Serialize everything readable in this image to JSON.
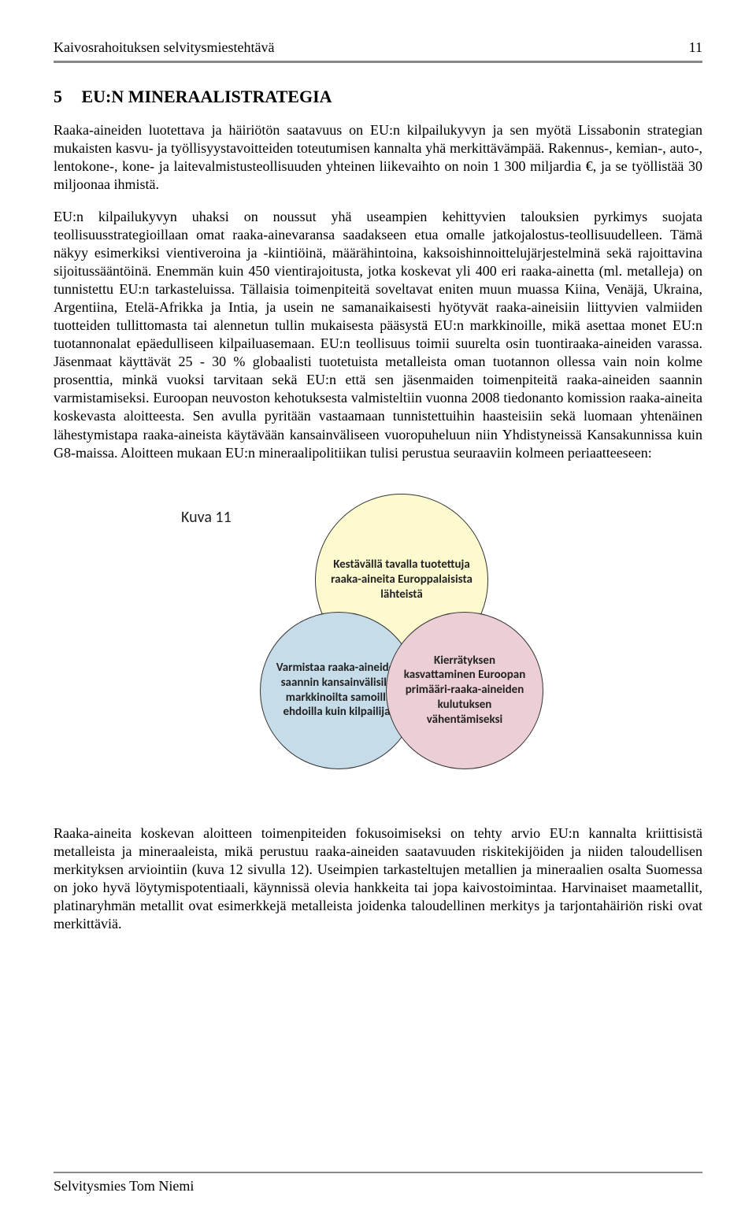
{
  "header": {
    "title": "Kaivosrahoituksen selvitysmiestehtävä",
    "page_number": "11"
  },
  "section": {
    "number": "5",
    "title": "EU:N MINERAALISTRATEGIA"
  },
  "paragraphs": {
    "p1": "Raaka-aineiden luotettava ja häiriötön saatavuus on EU:n kilpailukyvyn ja sen myötä Lissabonin strategian mukaisten kasvu- ja työllisyystavoitteiden toteutumisen kannalta yhä merkittävämpää. Rakennus-, kemian-, auto-, lentokone-, kone- ja laitevalmistusteollisuuden yhteinen liikevaihto on noin 1 300 miljardia €, ja se työllistää 30 miljoonaa ihmistä.",
    "p2": "EU:n kilpailukyvyn uhaksi on noussut yhä useampien kehittyvien talouksien pyrkimys suojata teollisuusstrategioillaan omat raaka-ainevaransa saadakseen etua omalle jatkojalostus-teollisuudelleen. Tämä näkyy esimerkiksi vientiveroina ja -kiintiöinä, määrähintoina, kaksoishinnoittelujärjestelminä sekä rajoittavina sijoitussääntöinä. Enemmän kuin 450 vientirajoitusta, jotka koskevat yli 400 eri raaka-ainetta (ml. metalleja) on tunnistettu EU:n tarkasteluissa. Tällaisia toimenpiteitä soveltavat eniten muun muassa Kiina, Venäjä, Ukraina, Argentiina, Etelä-Afrikka ja Intia, ja usein ne samanaikaisesti hyötyvät raaka-aineisiin liittyvien valmiiden tuotteiden tullittomasta tai alennetun tullin mukaisesta pääsystä EU:n markkinoille, mikä asettaa monet EU:n tuotannonalat epäedulliseen kilpailuasemaan. EU:n teollisuus toimii suurelta osin tuontiraaka-aineiden varassa. Jäsenmaat käyttävät 25 - 30 % globaalisti tuotetuista metalleista oman tuotannon ollessa vain noin kolme prosenttia, minkä vuoksi tarvitaan sekä EU:n että sen jäsenmaiden toimenpiteitä raaka-aineiden saannin varmistamiseksi.  Euroopan neuvoston kehotuksesta valmisteltiin vuonna 2008 tiedonanto komission raaka-aineita koskevasta aloitteesta. Sen avulla pyritään vastaamaan tunnistettuihin haasteisiin sekä luomaan yhtenäinen lähestymistapa raaka-aineista käytävään kansainväliseen vuoropuheluun niin Yhdistyneissä Kansakunnissa kuin G8-maissa. Aloitteen mukaan EU:n mineraalipolitiikan tulisi perustua seuraaviin kolmeen periaatteeseen:",
    "p3": "Raaka-aineita koskevan aloitteen toimenpiteiden fokusoimiseksi on tehty arvio EU:n kannalta kriittisistä metalleista ja mineraaleista, mikä perustuu raaka-aineiden saatavuuden riskitekijöiden ja niiden taloudellisen merkityksen arviointiin (kuva 12 sivulla 12). Useimpien tarkasteltujen metallien ja mineraalien osalta Suomessa on joko hyvä löytymispotentiaali, käynnissä olevia hankkeita tai jopa kaivostoimintaa.  Harvinaiset maametallit, platinaryhmän metallit ovat esimerkkejä metalleista joidenka taloudellinen merkitys ja tarjontahäiriön riski ovat merkittäviä."
  },
  "venn": {
    "label": "Kuva 11",
    "top": {
      "text": "Kestävällä tavalla tuotettuja raaka-aineita Europpalaisista lähteistä",
      "fill": "#fdfacf",
      "stroke": "#333333"
    },
    "left": {
      "text": "Varmistaa raaka-aineiden saannin kansainvälisiltä markkinoilta samoilla ehdoilla kuin kilpailijat",
      "fill": "#c6dce8",
      "stroke": "#333333"
    },
    "right": {
      "text": "Kierrätyksen kasvattaminen Euroopan primääri-raaka-aineiden kulutuksen vähentämiseksi",
      "fill": "#ecced5",
      "stroke": "#333333"
    }
  },
  "footer": {
    "text": "Selvitysmies Tom Niemi"
  },
  "colors": {
    "rule": "#888888",
    "text": "#000000",
    "background": "#ffffff"
  }
}
